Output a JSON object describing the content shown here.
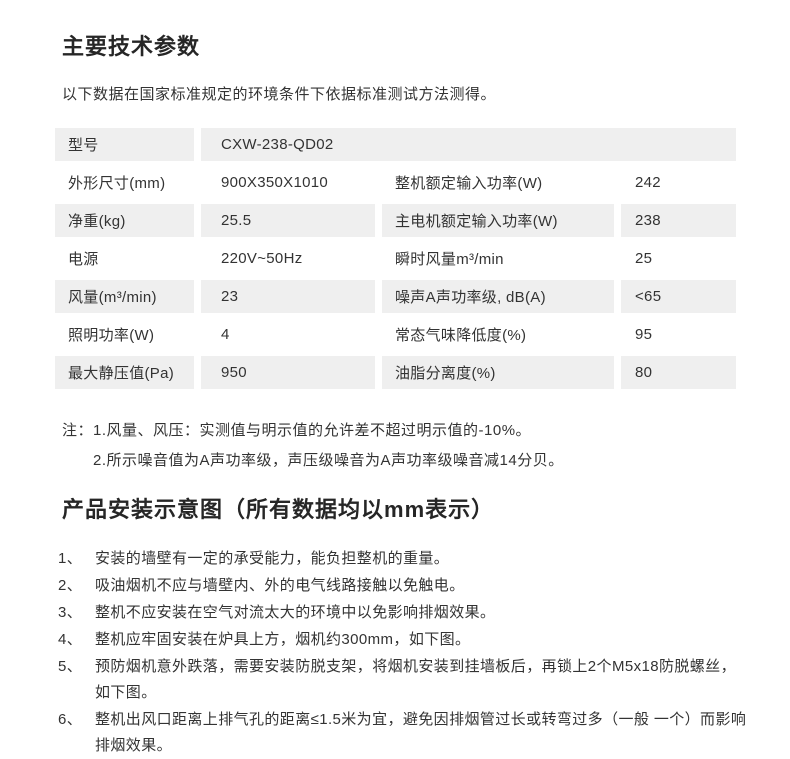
{
  "colors": {
    "row_gray": "#efefef",
    "text": "#333333",
    "heading": "#262626",
    "background": "#ffffff"
  },
  "section1": {
    "title": "主要技术参数",
    "subtitle": "以下数据在国家标准规定的环境条件下依据标准测试方法测得。",
    "table": {
      "model_row": {
        "label": "型号",
        "value": "CXW-238-QD02"
      },
      "rows": [
        {
          "c1": "外形尺寸(mm)",
          "c2": "900X350X1010",
          "c3": "整机额定输入功率(W)",
          "c4": "242"
        },
        {
          "c1": "净重(kg)",
          "c2": "25.5",
          "c3": "主电机额定输入功率(W)",
          "c4": "238"
        },
        {
          "c1": "电源",
          "c2": "220V~50Hz",
          "c3": "瞬时风量m³/min",
          "c4": "25"
        },
        {
          "c1": "风量(m³/min)",
          "c2": "23",
          "c3": "噪声A声功率级, dB(A)",
          "c4": "<65"
        },
        {
          "c1": "照明功率(W)",
          "c2": "4",
          "c3": "常态气味降低度(%)",
          "c4": "95"
        },
        {
          "c1": "最大静压值(Pa)",
          "c2": "950",
          "c3": "油脂分离度(%)",
          "c4": "80"
        }
      ]
    },
    "notes": {
      "prefix": "注：",
      "items": [
        "1.风量、风压：实测值与明示值的允许差不超过明示值的-10%。",
        "2.所示噪音值为A声功率级，声压级噪音为A声功率级噪音减14分贝。"
      ]
    }
  },
  "section2": {
    "title": "产品安装示意图（所有数据均以mm表示）",
    "items": [
      {
        "num": "1、",
        "text": "安装的墙壁有一定的承受能力，能负担整机的重量。"
      },
      {
        "num": "2、",
        "text": "吸油烟机不应与墙壁内、外的电气线路接触以免触电。"
      },
      {
        "num": "3、",
        "text": "整机不应安装在空气对流太大的环境中以免影响排烟效果。"
      },
      {
        "num": "4、",
        "text": "整机应牢固安装在炉具上方，烟机约300mm，如下图。"
      },
      {
        "num": "5、",
        "text": "预防烟机意外跌落，需要安装防脱支架，将烟机安装到挂墙板后，再锁上2个M5x18防脱螺丝，如下图。"
      },
      {
        "num": "6、",
        "text": "整机出风口距离上排气孔的距离≤1.5米为宜，避免因排烟管过长或转弯过多（一般 一个）而影响排烟效果。"
      }
    ]
  }
}
